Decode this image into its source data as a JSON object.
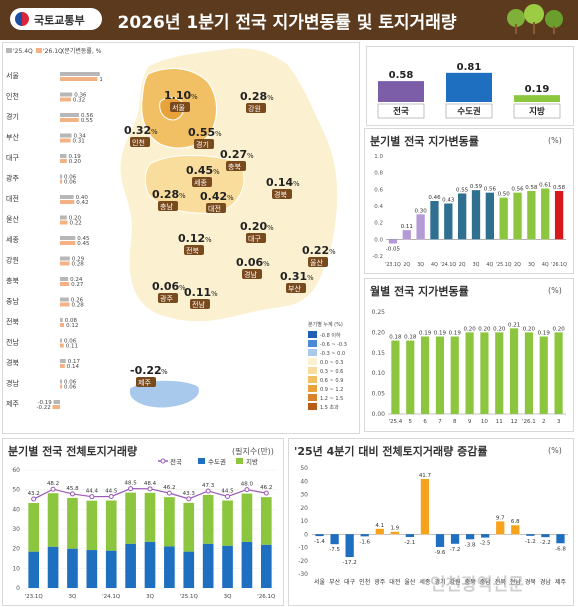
{
  "header": {
    "logo_text": "국토교통부",
    "title": "2026년 1분기 전국 지가변동률 및 토지거래량"
  },
  "regional_chart": {
    "legend_a": "'25.4Q",
    "legend_b": "'26.1Q",
    "legend_unit": "(분기변동률, %)",
    "color_a": "#b7b7b7",
    "color_b": "#f4b183"
  },
  "map": {
    "legend_title": "분기별 누계 (%)",
    "legend_items": [
      {
        "label": "-0.8 이하",
        "color": "#1f5fb4"
      },
      {
        "label": "-0.6 ~ -0.3",
        "color": "#4a8ad6"
      },
      {
        "label": "-0.3 ~ 0.0",
        "color": "#a8c8ec"
      },
      {
        "label": "0.0 ~ 0.3",
        "color": "#fbf1d0"
      },
      {
        "label": "0.3 ~ 0.6",
        "color": "#f8dd9c"
      },
      {
        "label": "0.6 ~ 0.9",
        "color": "#f2c064"
      },
      {
        "label": "0.9 ~ 1.2",
        "color": "#e8a23a"
      },
      {
        "label": "1.2 ~ 1.5",
        "color": "#d9822b"
      },
      {
        "label": "1.5 초과",
        "color": "#b85c1a"
      }
    ],
    "labels": [
      {
        "value": "1.10",
        "unit": "%",
        "name": "서울"
      },
      {
        "value": "0.28",
        "unit": "%",
        "name": "강원"
      },
      {
        "value": "0.32",
        "unit": "%",
        "name": "인천"
      },
      {
        "value": "0.55",
        "unit": "%",
        "name": "경기"
      },
      {
        "value": "0.27",
        "unit": "%",
        "name": "충북"
      },
      {
        "value": "0.45",
        "unit": "%",
        "name": "세종"
      },
      {
        "value": "0.14",
        "unit": "%",
        "name": "경북"
      },
      {
        "value": "0.28",
        "unit": "%",
        "name": "충남"
      },
      {
        "value": "0.42",
        "unit": "%",
        "name": "대전"
      },
      {
        "value": "0.20",
        "unit": "%",
        "name": "대구"
      },
      {
        "value": "0.12",
        "unit": "%",
        "name": "전북"
      },
      {
        "value": "0.22",
        "unit": "%",
        "name": "울산"
      },
      {
        "value": "0.06",
        "unit": "%",
        "name": "경남"
      },
      {
        "value": "0.31",
        "unit": "%",
        "name": "부산"
      },
      {
        "value": "0.06",
        "unit": "%",
        "name": "광주"
      },
      {
        "value": "0.11",
        "unit": "%",
        "name": "전남"
      },
      {
        "value": "-0.22",
        "unit": "%",
        "name": "제주"
      }
    ]
  },
  "ui": {
    "quarterly_title": "분기별 전국 지가변동률",
    "quarterly_unit": "(%)",
    "monthly_title": "월별 전국 지가변동률",
    "monthly_unit": "(%)",
    "volume_title": "분기별 전국 전체토지거래량",
    "volume_unit": "(필지수(만))",
    "change_title": "'25년 4분기 대비 전체토지거래량 증감률",
    "change_unit": "(%)",
    "watermark": "인천광역신문"
  },
  "chart_data": [
    {
      "type": "bar",
      "orientation": "horizontal",
      "categories": [
        "서울",
        "인천",
        "경기",
        "부산",
        "대구",
        "광주",
        "대전",
        "울산",
        "세종",
        "강원",
        "충북",
        "충남",
        "전북",
        "전남",
        "경북",
        "경남",
        "제주"
      ],
      "series": [
        {
          "name": "'25.4Q",
          "values": [
            1.17,
            0.36,
            0.56,
            0.34,
            0.19,
            0.06,
            0.4,
            0.2,
            0.45,
            0.29,
            0.24,
            0.26,
            0.08,
            0.06,
            0.17,
            0.06,
            -0.19
          ]
        },
        {
          "name": "'26.1Q",
          "values": [
            1.1,
            0.32,
            0.55,
            0.31,
            0.2,
            0.06,
            0.42,
            0.22,
            0.45,
            0.28,
            0.27,
            0.28,
            0.12,
            0.11,
            0.14,
            0.06,
            -0.22
          ]
        }
      ]
    },
    {
      "type": "bar",
      "categories": [
        "전국",
        "수도권",
        "지방"
      ],
      "values": [
        0.58,
        0.81,
        0.19
      ],
      "colors": [
        "#7b5ea7",
        "#1f6fc1",
        "#8cc63f"
      ]
    },
    {
      "type": "bar",
      "categories": [
        "'23.1Q",
        "2Q",
        "3Q",
        "4Q",
        "'24.1Q",
        "2Q",
        "3Q",
        "4Q",
        "'25.1Q",
        "2Q",
        "3Q",
        "4Q",
        "'26.1Q"
      ],
      "values": [
        -0.05,
        0.11,
        0.3,
        0.46,
        0.43,
        0.55,
        0.59,
        0.56,
        0.5,
        0.56,
        0.58,
        0.61,
        0.58
      ],
      "ylim": [
        -0.2,
        1.0
      ],
      "yticks": [
        -0.2,
        0,
        0.2,
        0.4,
        0.6,
        0.8,
        1.0
      ],
      "xtick_labels": [
        "'23.1Q",
        "2Q",
        "3Q",
        "4Q",
        "'24.1Q",
        "2Q",
        "3Q",
        "4Q",
        "'25.1Q",
        "2Q",
        "3Q",
        "4Q",
        "'26.1Q"
      ],
      "colors": [
        "#b49ad6",
        "#b49ad6",
        "#b49ad6",
        "#2f6f8f",
        "#2f6f8f",
        "#2f6f8f",
        "#2f6f8f",
        "#2f6f8f",
        "#8cc63f",
        "#8cc63f",
        "#8cc63f",
        "#8cc63f",
        "#d7191c"
      ]
    },
    {
      "type": "bar",
      "categories": [
        "'25.4",
        "5",
        "6",
        "7",
        "8",
        "9",
        "10",
        "11",
        "12",
        "'26.1",
        "2",
        "3"
      ],
      "values": [
        0.18,
        0.18,
        0.19,
        0.19,
        0.19,
        0.2,
        0.2,
        0.2,
        0.21,
        0.2,
        0.19,
        0.2
      ],
      "ylim": [
        0,
        0.25
      ],
      "yticks": [
        0,
        0.05,
        0.1,
        0.15,
        0.2,
        0.25
      ],
      "color": "#8cc63f"
    },
    {
      "type": "bar",
      "categories": [
        "'23.1Q",
        "2Q",
        "3Q",
        "4Q",
        "'24.1Q",
        "2Q",
        "3Q",
        "4Q",
        "'25.1Q",
        "2Q",
        "3Q",
        "4Q",
        "'26.1Q"
      ],
      "xtick_labels": [
        "'23.1Q",
        "",
        "3Q",
        "",
        "'24.1Q",
        "",
        "3Q",
        "",
        "'25.1Q",
        "",
        "3Q",
        "",
        "'26.1Q"
      ],
      "series": [
        {
          "name": "전국",
          "values": [
            43.2,
            48.2,
            45.8,
            44.4,
            44.5,
            48.5,
            48.4,
            46.2,
            43.3,
            47.3,
            44.5,
            48.0,
            46.2
          ]
        },
        {
          "name": "수도권",
          "values": [
            18.5,
            21.0,
            20.0,
            19.3,
            19.0,
            22.5,
            23.5,
            21.2,
            18.5,
            22.5,
            21.5,
            23.5,
            22.0
          ]
        },
        {
          "name": "지방",
          "values": [
            24.7,
            27.2,
            25.8,
            25.1,
            25.5,
            26.0,
            24.9,
            25.0,
            24.8,
            24.8,
            23.0,
            24.5,
            24.2
          ]
        }
      ],
      "ylim": [
        0,
        60
      ],
      "yticks": [
        0,
        10,
        20,
        30,
        40,
        50,
        60
      ],
      "colors": [
        "#9b59b6",
        "#1f6fc1",
        "#8cc63f"
      ]
    },
    {
      "type": "bar",
      "categories": [
        "서울",
        "부산",
        "대구",
        "인천",
        "광주",
        "대전",
        "울산",
        "세종",
        "경기",
        "강원",
        "충북",
        "충남",
        "전북",
        "전남",
        "경북",
        "경남",
        "제주"
      ],
      "values": [
        -1.4,
        -7.5,
        -17.2,
        -1.6,
        4.1,
        1.9,
        -2.1,
        41.7,
        -9.6,
        -7.2,
        -3.8,
        -2.5,
        9.7,
        6.8,
        -1.2,
        -2.2,
        -6.8
      ],
      "ylim": [
        -30,
        50
      ],
      "yticks": [
        -30,
        -20,
        -10,
        0,
        10,
        20,
        30,
        40,
        50
      ],
      "colors": [
        "#1f6fc1",
        "#1f6fc1",
        "#1f6fc1",
        "#1f6fc1",
        "#f7a21b",
        "#f7a21b",
        "#1f6fc1",
        "#f7a21b",
        "#1f6fc1",
        "#1f6fc1",
        "#1f6fc1",
        "#1f6fc1",
        "#f7a21b",
        "#f7a21b",
        "#1f6fc1",
        "#1f6fc1",
        "#1f6fc1"
      ]
    }
  ]
}
